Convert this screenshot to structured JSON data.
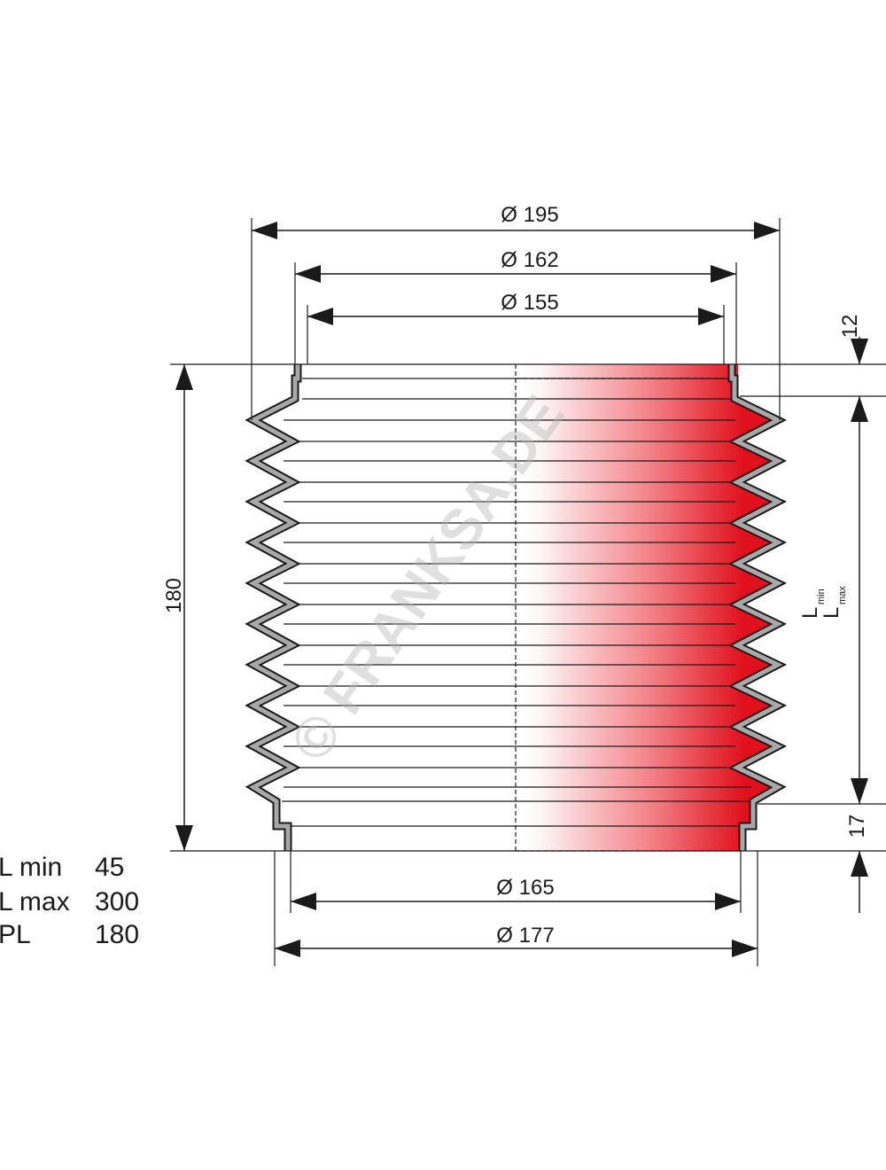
{
  "dimensions": {
    "outer_diameter_top": "Ø 195",
    "flange_diameter_top": "Ø 162",
    "inner_diameter_top": "Ø 155",
    "top_collar_height": "12",
    "total_height": "180",
    "bottom_collar_height": "17",
    "inner_diameter_bottom": "Ø 165",
    "outer_diameter_bottom": "Ø 177",
    "length_label_min": "L",
    "length_label_min_sub": "min",
    "length_label_max": "L",
    "length_label_max_sub": "max"
  },
  "specs": [
    {
      "label": "L min",
      "value": "45"
    },
    {
      "label": "L max",
      "value": "300"
    },
    {
      "label": "PL",
      "value": "180"
    }
  ],
  "watermark": "© FRANKSA.DE",
  "colors": {
    "line": "#1a1a1a",
    "wall_fill": "#a8a8a8",
    "accent_red": "#e8202a"
  }
}
